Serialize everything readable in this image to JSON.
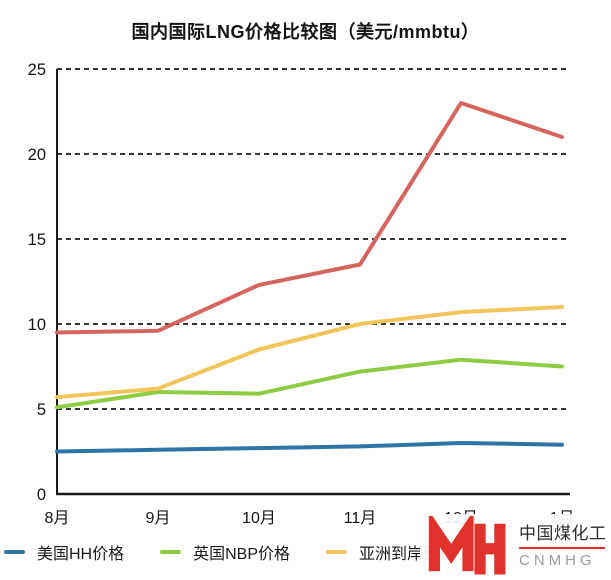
{
  "title": "国内国际LNG价格比较图（美元/mmbtu）",
  "chart_data": {
    "type": "line",
    "categories": [
      "8月",
      "9月",
      "10月",
      "11月",
      "12月",
      "1月"
    ],
    "series": [
      {
        "name": "美国HH价格",
        "color": "#2e74a6",
        "values": [
          2.5,
          2.6,
          2.7,
          2.8,
          3.0,
          2.9
        ],
        "in_legend": true
      },
      {
        "name": "英国NBP价格",
        "color": "#8fcb43",
        "values": [
          5.1,
          6.0,
          5.9,
          7.2,
          7.9,
          7.5
        ],
        "in_legend": true
      },
      {
        "name": "亚洲到岸价格",
        "color": "#f2c55c",
        "values": [
          5.7,
          6.2,
          8.5,
          10.0,
          10.7,
          11.0
        ],
        "in_legend": true
      },
      {
        "name": "",
        "color": "#d4655f",
        "values": [
          9.5,
          9.6,
          12.3,
          13.5,
          23.0,
          21.0
        ],
        "in_legend": false
      }
    ],
    "xlabel": "",
    "ylabel": "",
    "ylim": [
      0,
      25
    ],
    "yticks": [
      0,
      5,
      10,
      15,
      20,
      25
    ],
    "grid": "horizontal-dashed",
    "legend_position": "bottom-left",
    "axis_color": "#1a1a1a"
  },
  "watermark": {
    "glyph": "MH",
    "company_zh": "中国煤化工",
    "company_en": "CNMHG",
    "accent_color": "#e0312a"
  }
}
